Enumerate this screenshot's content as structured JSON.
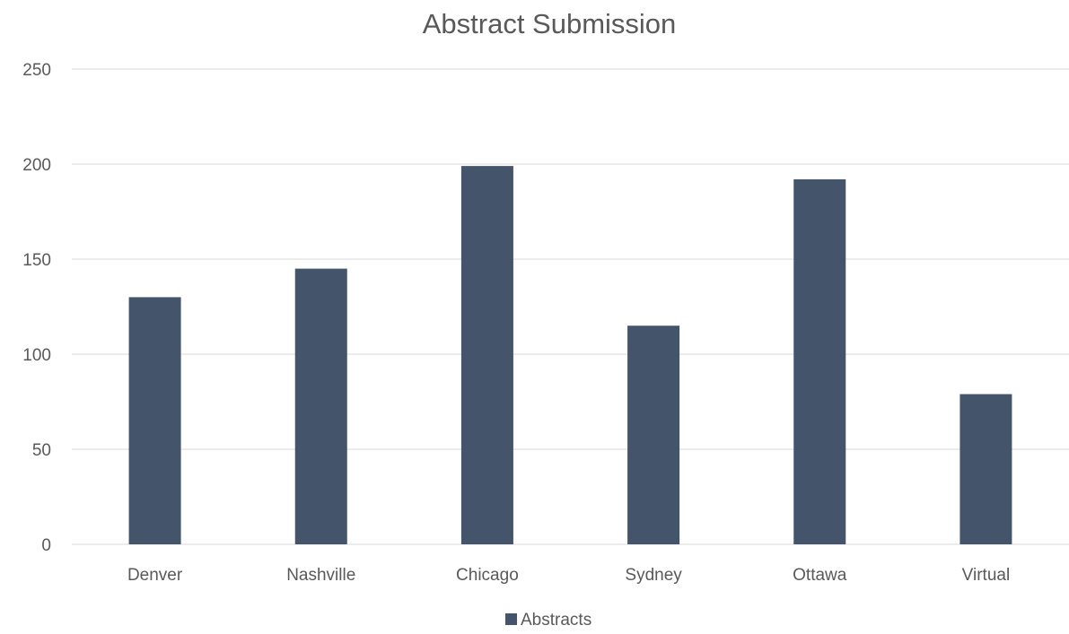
{
  "chart_data": {
    "type": "bar",
    "title": "Abstract Submission",
    "xlabel": "",
    "ylabel": "",
    "categories": [
      "Denver",
      "Nashville",
      "Chicago",
      "Sydney",
      "Ottawa",
      "Virtual"
    ],
    "series": [
      {
        "name": "Abstracts",
        "values": [
          130,
          145,
          199,
          115,
          192,
          79
        ],
        "color": "#44546a"
      }
    ],
    "ylim": [
      0,
      250
    ],
    "yticks": [
      "0",
      "50",
      "100",
      "150",
      "200",
      "250"
    ],
    "grid": true,
    "legend": "bottom"
  }
}
